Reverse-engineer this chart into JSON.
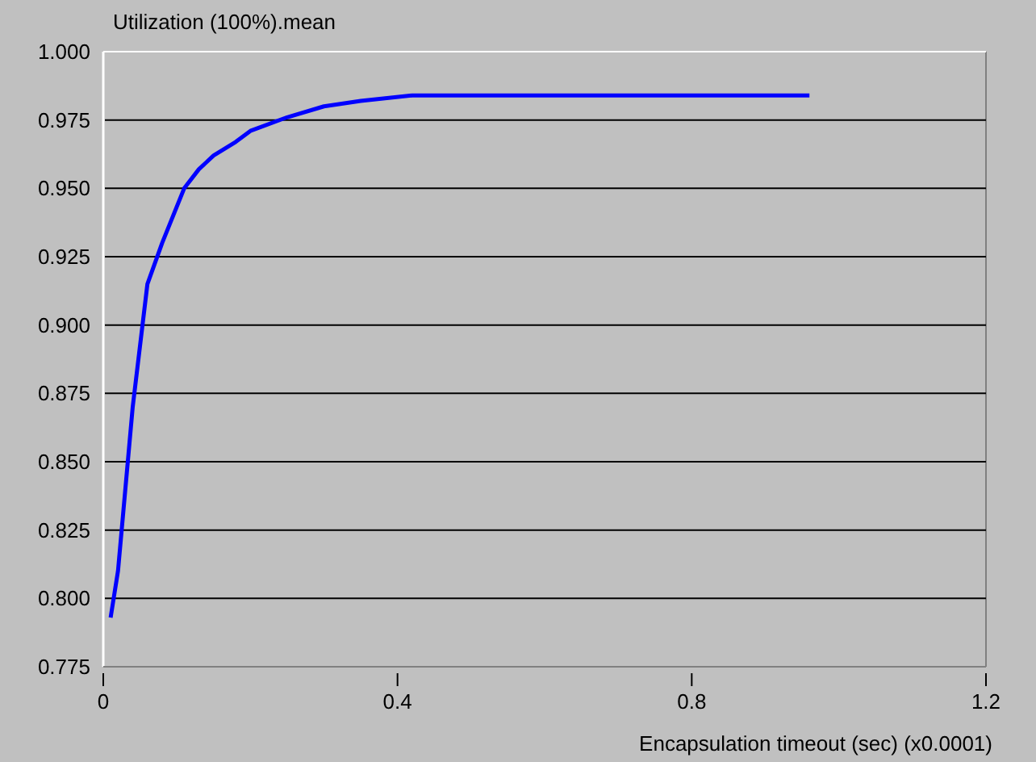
{
  "chart_data": {
    "type": "line",
    "ylabel": "Utilization (100%).mean",
    "xlabel": "Encapsulation timeout (sec) (x0.0001)",
    "xlim": [
      0,
      1.2
    ],
    "xticks": [
      0,
      0.4,
      0.8,
      1.2
    ],
    "ylim": [
      0.775,
      1.0
    ],
    "yticks": [
      0.775,
      {
        "value": 0.8,
        "label": "0.800"
      },
      0.825,
      {
        "value": 0.85,
        "label": "0.850"
      },
      0.875,
      {
        "value": 0.9,
        "label": "0.900"
      },
      0.925,
      {
        "value": 0.95,
        "label": "0.950"
      },
      0.975,
      {
        "value": 1.0,
        "label": "1.000"
      }
    ],
    "grid": "y",
    "series": [
      {
        "color": "#0000ff",
        "x": [
          0.01,
          0.02,
          0.04,
          0.06,
          0.08,
          0.11,
          0.13,
          0.15,
          0.18,
          0.2,
          0.25,
          0.3,
          0.35,
          0.42,
          0.96
        ],
        "values": [
          0.793,
          0.81,
          0.87,
          0.915,
          0.93,
          0.95,
          0.957,
          0.962,
          0.967,
          0.971,
          0.976,
          0.98,
          0.982,
          0.984,
          0.984
        ]
      }
    ]
  }
}
